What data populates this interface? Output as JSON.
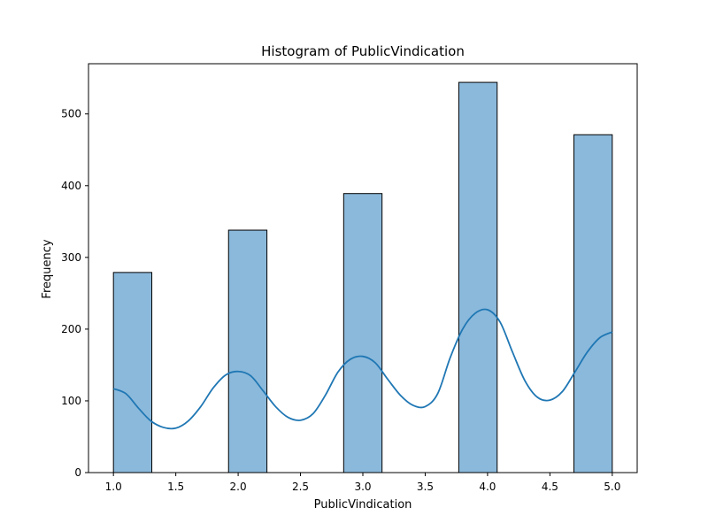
{
  "chart_data": {
    "type": "bar",
    "title": "Histogram of PublicVindication",
    "xlabel": "PublicVindication",
    "ylabel": "Frequency",
    "xlim": [
      0.8,
      5.2
    ],
    "ylim": [
      0,
      570
    ],
    "x_ticks": [
      1.0,
      1.5,
      2.0,
      2.5,
      3.0,
      3.5,
      4.0,
      4.5,
      5.0
    ],
    "x_tick_labels": [
      "1.0",
      "1.5",
      "2.0",
      "2.5",
      "3.0",
      "3.5",
      "4.0",
      "4.5",
      "5.0"
    ],
    "y_ticks": [
      0,
      100,
      200,
      300,
      400,
      500
    ],
    "y_tick_labels": [
      "0",
      "100",
      "200",
      "300",
      "400",
      "500"
    ],
    "bins": [
      {
        "x0": 1.0,
        "x1": 1.3077,
        "count": 279
      },
      {
        "x0": 1.9231,
        "x1": 2.2308,
        "count": 338
      },
      {
        "x0": 2.8462,
        "x1": 3.1538,
        "count": 389
      },
      {
        "x0": 3.7692,
        "x1": 4.0769,
        "count": 544
      },
      {
        "x0": 4.6923,
        "x1": 5.0,
        "count": 471
      }
    ],
    "bar_color": "#8bb9db",
    "bar_edge_color": "#000000",
    "kde": {
      "color": "#1f77b4",
      "points": [
        [
          1.0,
          117
        ],
        [
          1.1,
          110
        ],
        [
          1.2,
          90
        ],
        [
          1.3,
          72
        ],
        [
          1.4,
          63
        ],
        [
          1.5,
          62
        ],
        [
          1.6,
          72
        ],
        [
          1.7,
          92
        ],
        [
          1.8,
          118
        ],
        [
          1.9,
          136
        ],
        [
          2.0,
          141
        ],
        [
          2.1,
          135
        ],
        [
          2.2,
          114
        ],
        [
          2.3,
          92
        ],
        [
          2.4,
          77
        ],
        [
          2.5,
          73
        ],
        [
          2.6,
          82
        ],
        [
          2.7,
          108
        ],
        [
          2.8,
          140
        ],
        [
          2.9,
          158
        ],
        [
          3.0,
          162
        ],
        [
          3.1,
          153
        ],
        [
          3.2,
          130
        ],
        [
          3.3,
          108
        ],
        [
          3.4,
          94
        ],
        [
          3.5,
          92
        ],
        [
          3.6,
          110
        ],
        [
          3.7,
          160
        ],
        [
          3.8,
          200
        ],
        [
          3.9,
          222
        ],
        [
          4.0,
          227
        ],
        [
          4.1,
          210
        ],
        [
          4.2,
          168
        ],
        [
          4.3,
          128
        ],
        [
          4.4,
          105
        ],
        [
          4.5,
          101
        ],
        [
          4.6,
          113
        ],
        [
          4.7,
          140
        ],
        [
          4.8,
          168
        ],
        [
          4.9,
          188
        ],
        [
          5.0,
          196
        ]
      ]
    }
  }
}
